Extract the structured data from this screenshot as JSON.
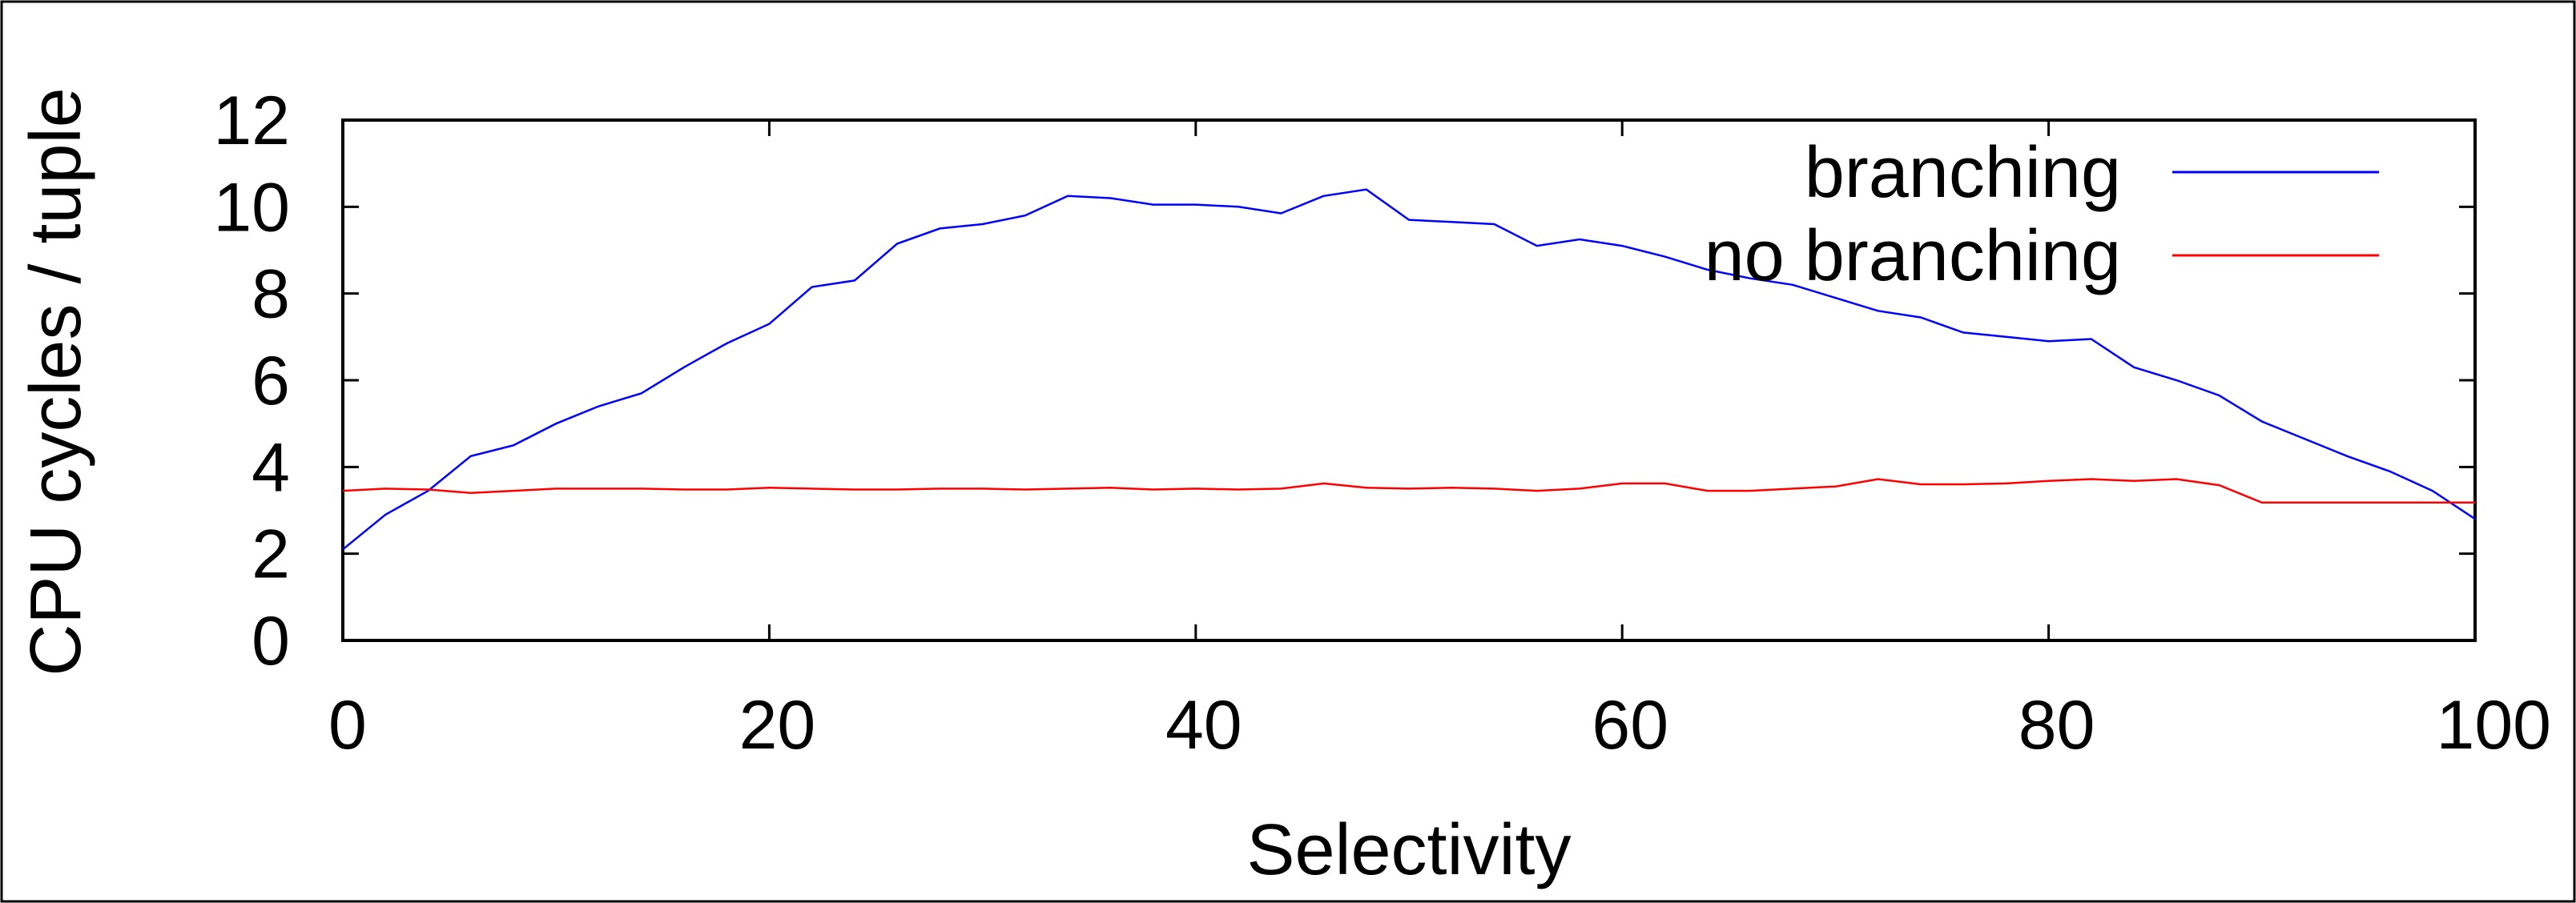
{
  "chart_data": {
    "type": "line",
    "title": "",
    "xlabel": "Selectivity",
    "ylabel": "CPU cycles / tuple",
    "xlim": [
      0,
      100
    ],
    "ylim": [
      0,
      12
    ],
    "x_ticks": [
      "0",
      "20",
      "40",
      "60",
      "80",
      "100"
    ],
    "y_ticks": [
      "0",
      "2",
      "4",
      "6",
      "8",
      "10",
      "12"
    ],
    "grid": false,
    "legend_position": "top-right",
    "x": [
      0,
      2,
      4,
      6,
      8,
      10,
      12,
      14,
      16,
      18,
      20,
      22,
      24,
      26,
      28,
      30,
      32,
      34,
      36,
      38,
      40,
      42,
      44,
      46,
      48,
      50,
      52,
      54,
      56,
      58,
      60,
      62,
      64,
      66,
      68,
      70,
      72,
      74,
      76,
      78,
      80,
      82,
      84,
      86,
      88,
      90,
      92,
      94,
      96,
      98,
      100
    ],
    "series": [
      {
        "name": "branching",
        "color": "#0000ff",
        "values": [
          2.1,
          2.9,
          3.45,
          4.25,
          4.5,
          5.0,
          5.4,
          5.7,
          6.3,
          6.85,
          7.3,
          8.15,
          8.3,
          9.15,
          9.5,
          9.6,
          9.8,
          10.25,
          10.2,
          10.05,
          10.05,
          10.0,
          9.85,
          10.25,
          10.4,
          9.7,
          9.65,
          9.6,
          9.1,
          9.25,
          9.1,
          8.85,
          8.55,
          8.35,
          8.2,
          7.9,
          7.6,
          7.45,
          7.1,
          7.0,
          6.9,
          6.95,
          6.3,
          6.0,
          5.65,
          5.05,
          4.65,
          4.25,
          3.9,
          3.45,
          2.8
        ]
      },
      {
        "name": "no branching",
        "color": "#ff0000",
        "values": [
          3.45,
          3.5,
          3.48,
          3.4,
          3.45,
          3.5,
          3.5,
          3.5,
          3.48,
          3.48,
          3.52,
          3.5,
          3.48,
          3.48,
          3.5,
          3.5,
          3.48,
          3.5,
          3.52,
          3.48,
          3.5,
          3.48,
          3.5,
          3.62,
          3.52,
          3.5,
          3.52,
          3.5,
          3.45,
          3.5,
          3.62,
          3.62,
          3.45,
          3.45,
          3.5,
          3.55,
          3.72,
          3.6,
          3.6,
          3.62,
          3.68,
          3.72,
          3.68,
          3.72,
          3.58,
          3.18,
          3.18,
          3.18,
          3.18,
          3.18,
          3.18
        ]
      }
    ]
  }
}
